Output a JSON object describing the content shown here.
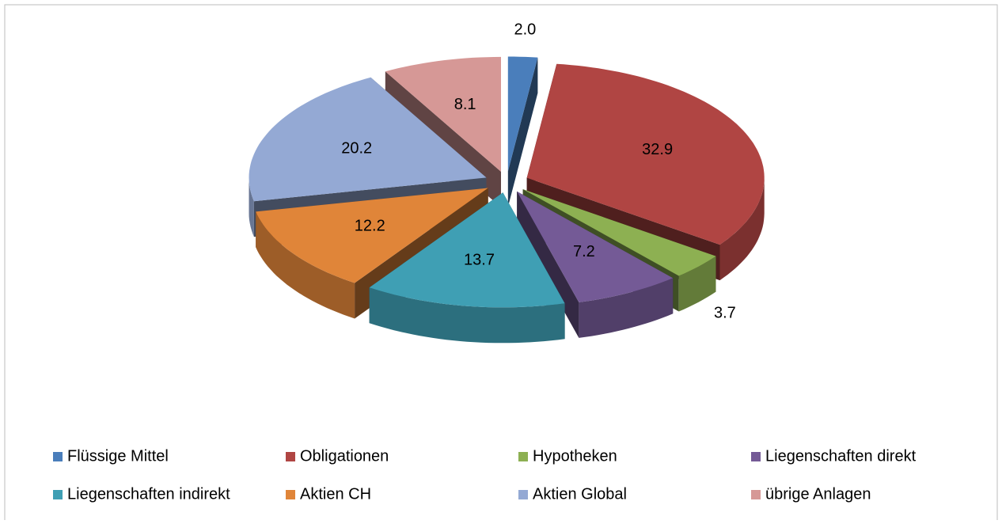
{
  "chart_data": {
    "type": "pie",
    "categories": [
      "Flüssige Mittel",
      "Obligationen",
      "Hypotheken",
      "Liegenschaften direkt",
      "Liegenschaften indirekt",
      "Aktien CH",
      "Aktien Global",
      "übrige Anlagen"
    ],
    "values": [
      2.0,
      32.9,
      3.7,
      7.2,
      13.7,
      12.2,
      20.2,
      8.1
    ],
    "value_labels": [
      "2.0",
      "32.9",
      "3.7",
      "7.2",
      "13.7",
      "12.2",
      "20.2",
      "8.1"
    ],
    "colors": [
      "#4a7ebb",
      "#b04543",
      "#8db052",
      "#745a96",
      "#3f9fb4",
      "#e08539",
      "#94a9d4",
      "#d69896"
    ],
    "legend": "bottom"
  }
}
